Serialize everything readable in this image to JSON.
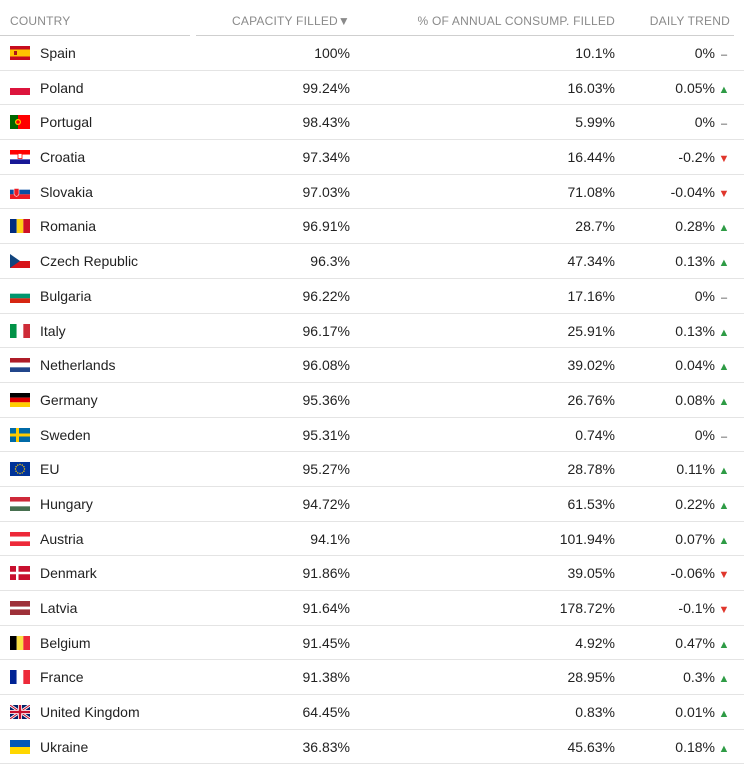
{
  "table": {
    "headers": {
      "country": "COUNTRY",
      "capacity": "CAPACITY FILLED",
      "capacity_sort_icon": "sort-desc-icon",
      "consumption": "% OF ANNUAL CONSUMP. FILLED",
      "trend": "DAILY TREND"
    },
    "colors": {
      "up": "#2e9b45",
      "down": "#e0362c",
      "flat": "#444444"
    },
    "rows": [
      {
        "country": "Spain",
        "flag": "es",
        "capacity": "100%",
        "consumption": "10.1%",
        "trend": "0%",
        "dir": "flat"
      },
      {
        "country": "Poland",
        "flag": "pl",
        "capacity": "99.24%",
        "consumption": "16.03%",
        "trend": "0.05%",
        "dir": "up"
      },
      {
        "country": "Portugal",
        "flag": "pt",
        "capacity": "98.43%",
        "consumption": "5.99%",
        "trend": "0%",
        "dir": "flat"
      },
      {
        "country": "Croatia",
        "flag": "hr",
        "capacity": "97.34%",
        "consumption": "16.44%",
        "trend": "-0.2%",
        "dir": "down"
      },
      {
        "country": "Slovakia",
        "flag": "sk",
        "capacity": "97.03%",
        "consumption": "71.08%",
        "trend": "-0.04%",
        "dir": "down"
      },
      {
        "country": "Romania",
        "flag": "ro",
        "capacity": "96.91%",
        "consumption": "28.7%",
        "trend": "0.28%",
        "dir": "up"
      },
      {
        "country": "Czech Republic",
        "flag": "cz",
        "capacity": "96.3%",
        "consumption": "47.34%",
        "trend": "0.13%",
        "dir": "up"
      },
      {
        "country": "Bulgaria",
        "flag": "bg",
        "capacity": "96.22%",
        "consumption": "17.16%",
        "trend": "0%",
        "dir": "flat"
      },
      {
        "country": "Italy",
        "flag": "it",
        "capacity": "96.17%",
        "consumption": "25.91%",
        "trend": "0.13%",
        "dir": "up"
      },
      {
        "country": "Netherlands",
        "flag": "nl",
        "capacity": "96.08%",
        "consumption": "39.02%",
        "trend": "0.04%",
        "dir": "up"
      },
      {
        "country": "Germany",
        "flag": "de",
        "capacity": "95.36%",
        "consumption": "26.76%",
        "trend": "0.08%",
        "dir": "up"
      },
      {
        "country": "Sweden",
        "flag": "se",
        "capacity": "95.31%",
        "consumption": "0.74%",
        "trend": "0%",
        "dir": "flat"
      },
      {
        "country": "EU",
        "flag": "eu",
        "capacity": "95.27%",
        "consumption": "28.78%",
        "trend": "0.11%",
        "dir": "up"
      },
      {
        "country": "Hungary",
        "flag": "hu",
        "capacity": "94.72%",
        "consumption": "61.53%",
        "trend": "0.22%",
        "dir": "up"
      },
      {
        "country": "Austria",
        "flag": "at",
        "capacity": "94.1%",
        "consumption": "101.94%",
        "trend": "0.07%",
        "dir": "up"
      },
      {
        "country": "Denmark",
        "flag": "dk",
        "capacity": "91.86%",
        "consumption": "39.05%",
        "trend": "-0.06%",
        "dir": "down"
      },
      {
        "country": "Latvia",
        "flag": "lv",
        "capacity": "91.64%",
        "consumption": "178.72%",
        "trend": "-0.1%",
        "dir": "down"
      },
      {
        "country": "Belgium",
        "flag": "be",
        "capacity": "91.45%",
        "consumption": "4.92%",
        "trend": "0.47%",
        "dir": "up"
      },
      {
        "country": "France",
        "flag": "fr",
        "capacity": "91.38%",
        "consumption": "28.95%",
        "trend": "0.3%",
        "dir": "up"
      },
      {
        "country": "United Kingdom",
        "flag": "gb",
        "capacity": "64.45%",
        "consumption": "0.83%",
        "trend": "0.01%",
        "dir": "up"
      },
      {
        "country": "Ukraine",
        "flag": "ua",
        "capacity": "36.83%",
        "consumption": "45.63%",
        "trend": "0.18%",
        "dir": "up"
      }
    ]
  }
}
